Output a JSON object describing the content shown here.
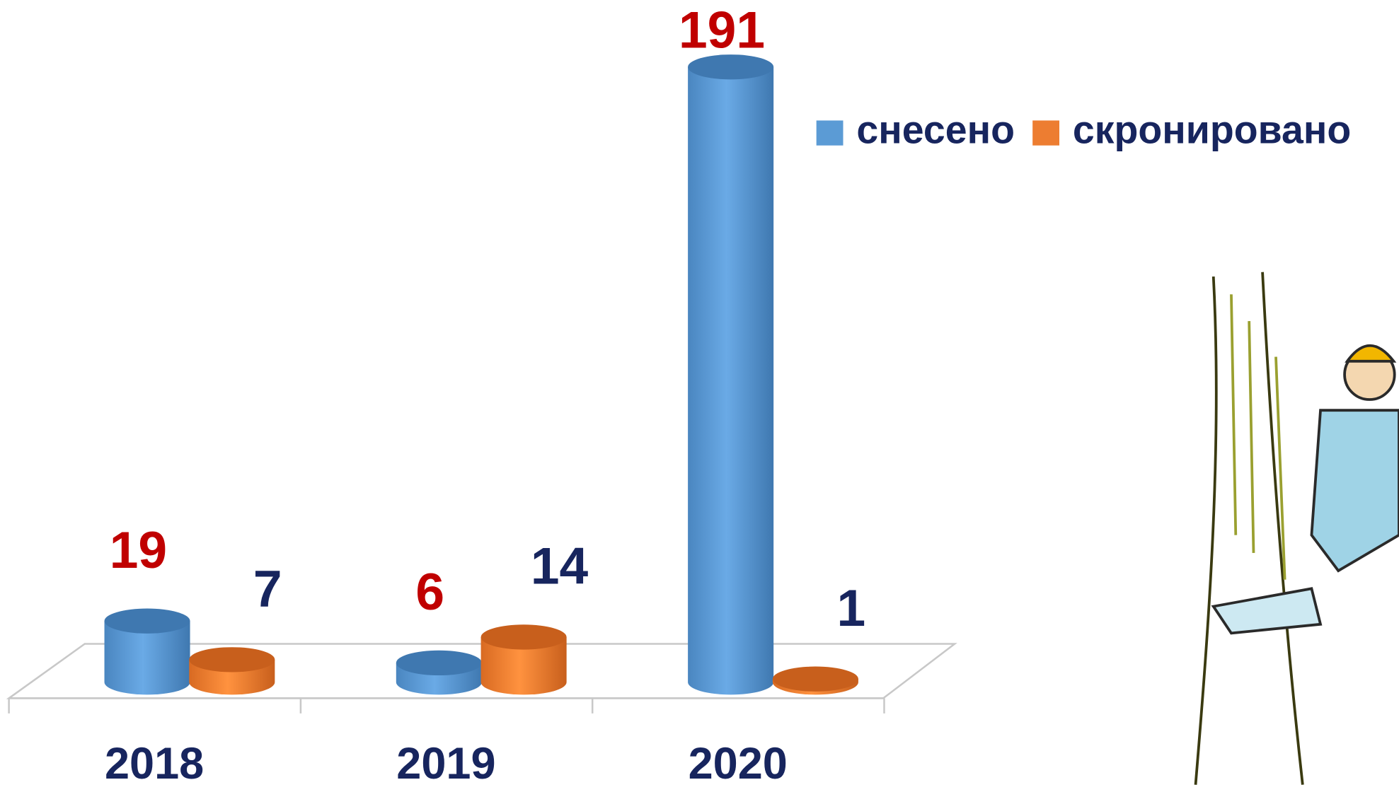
{
  "chart_data": {
    "type": "bar",
    "categories": [
      "2018",
      "2019",
      "2020"
    ],
    "series": [
      {
        "name": "снесено",
        "color": "#5b9bd5",
        "label_color": "#c00000",
        "values": [
          19,
          6,
          191
        ]
      },
      {
        "name": "скронировано",
        "color": "#ed7d31",
        "label_color": "#17255e",
        "values": [
          7,
          14,
          1
        ]
      }
    ],
    "legend": "top-right"
  }
}
